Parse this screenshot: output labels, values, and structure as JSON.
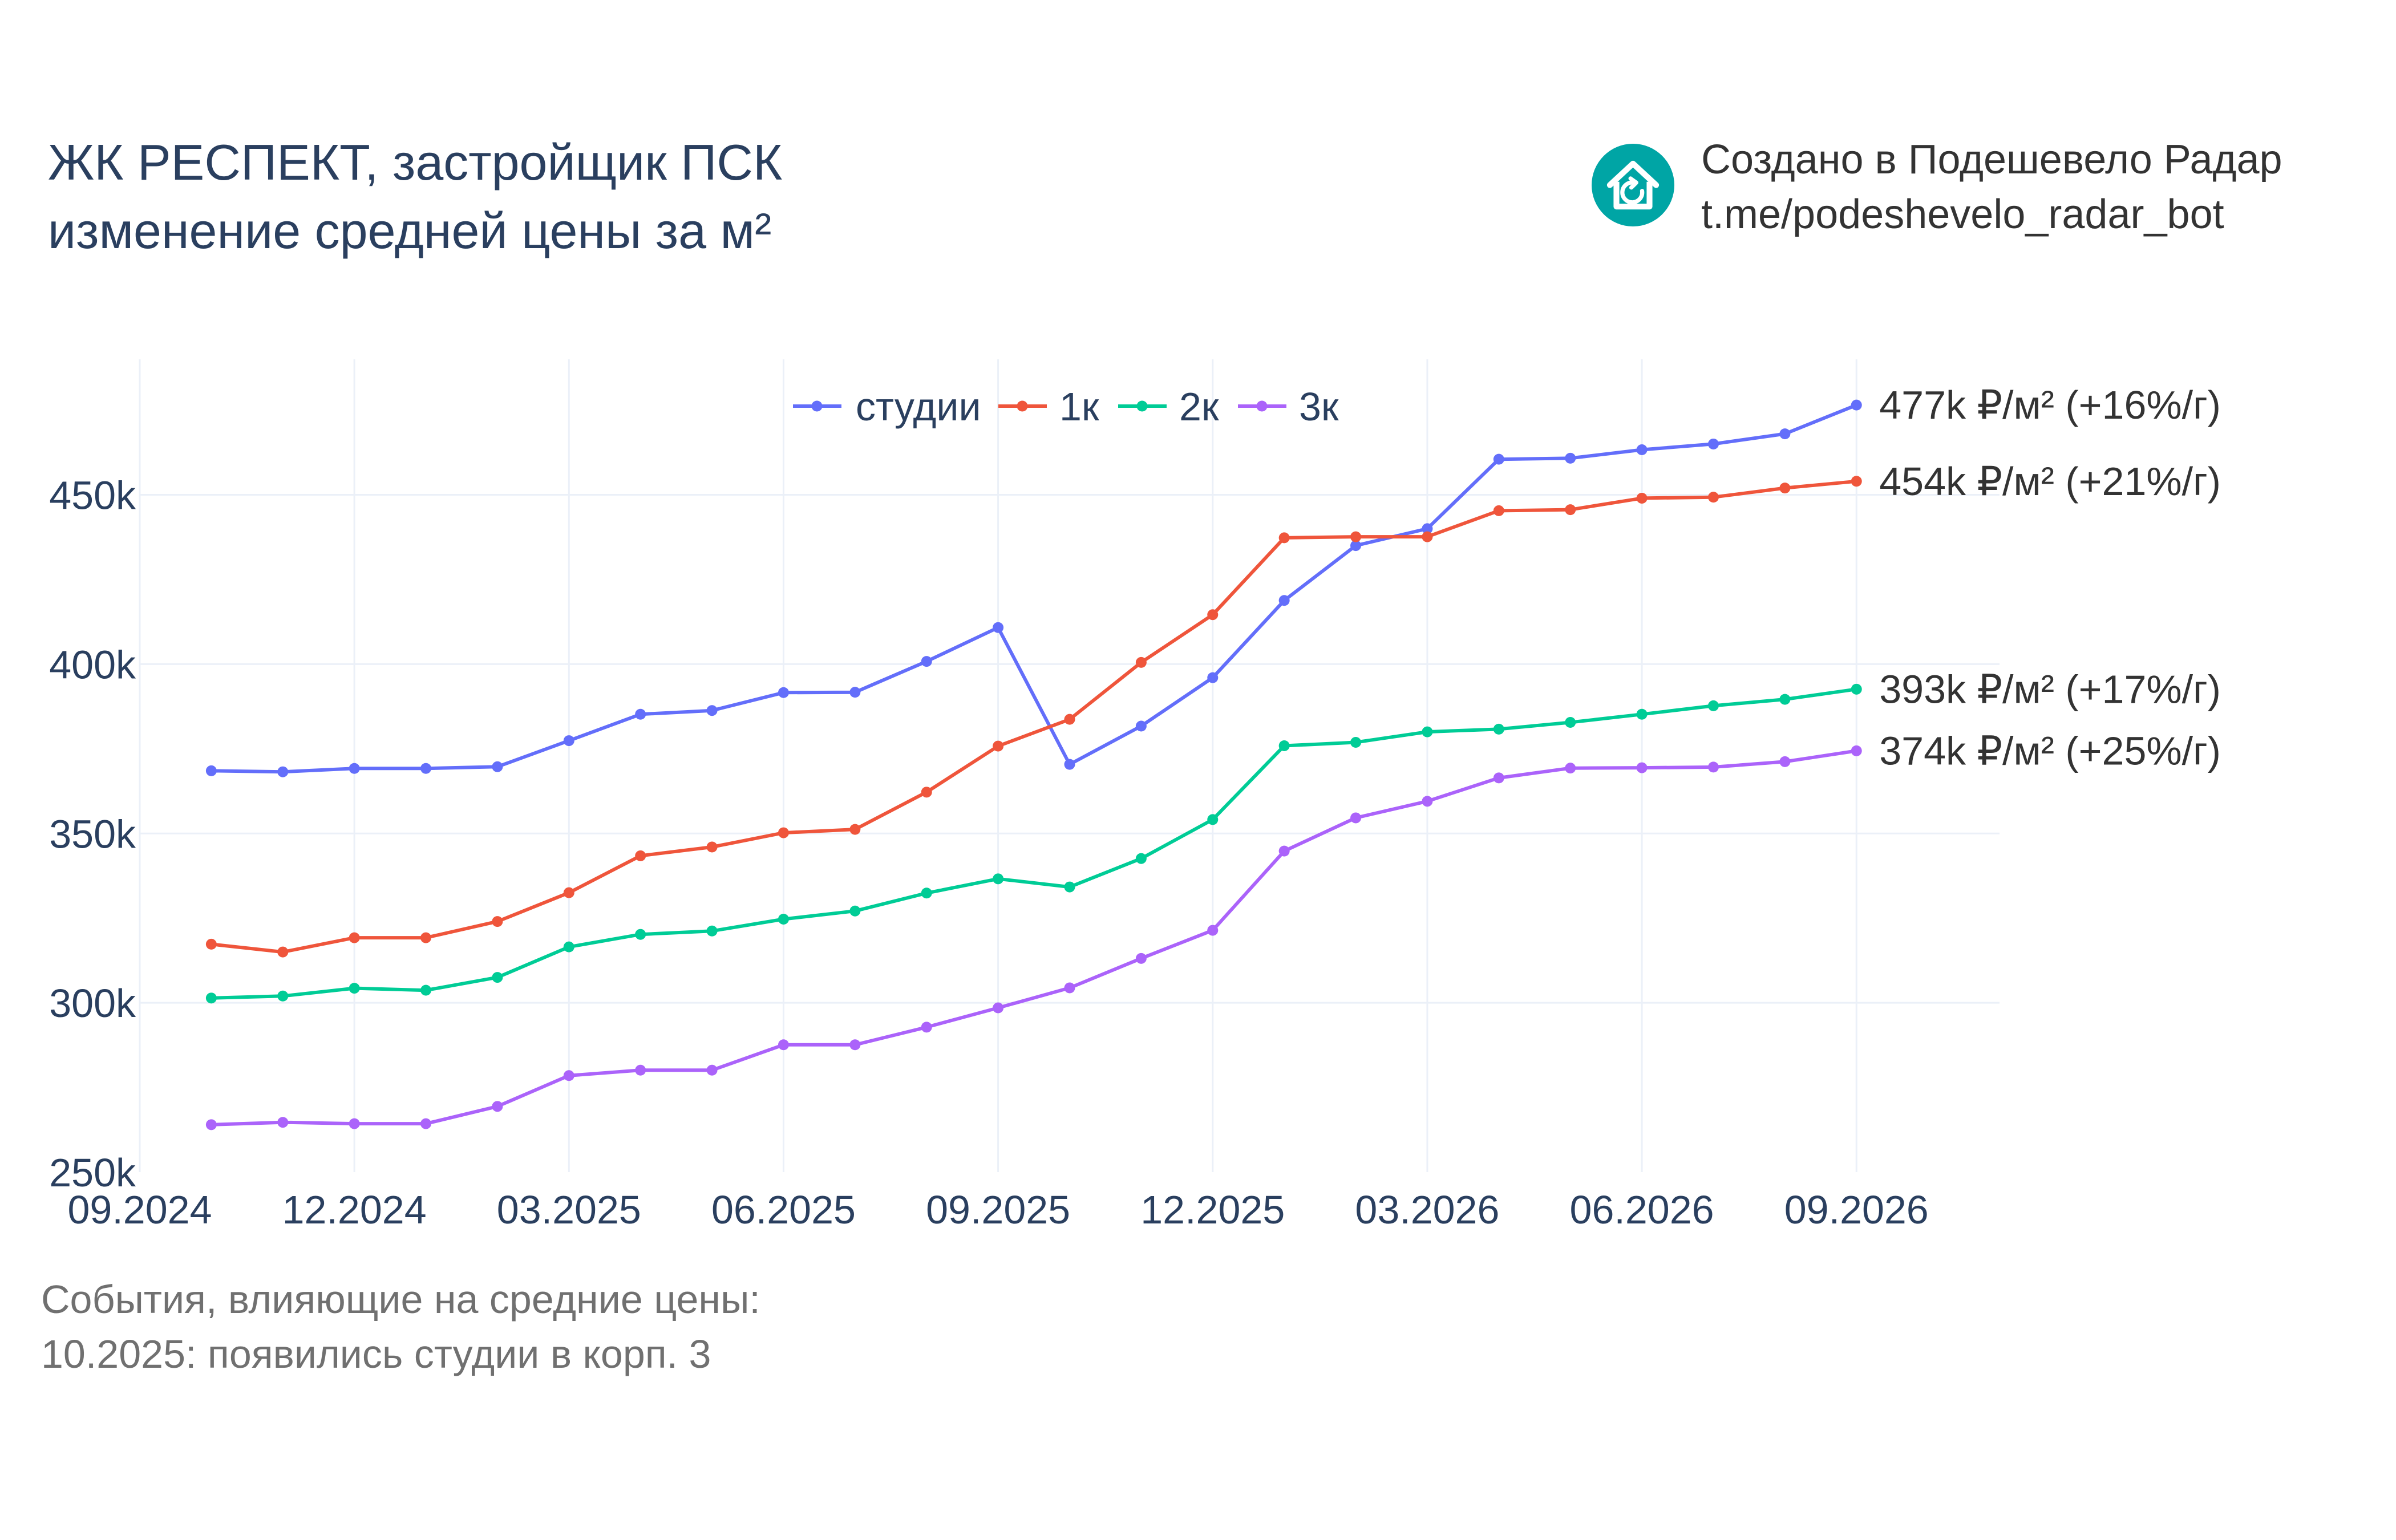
{
  "title": {
    "line1": "ЖК РЕСПЕКТ, застройщик ПСК",
    "line2": "изменение средней цены за м²"
  },
  "brand": {
    "icon": "house-refresh-icon",
    "icon_color": "#00a5a5",
    "line1": "Создано в Подешевело Радар",
    "line2": "t.me/podeshevelo_radar_bot"
  },
  "footer": {
    "line1": "События, влияющие на средние цены:",
    "line2": "10.2025: появились студии в корп. 3"
  },
  "chart_data": {
    "type": "line",
    "x": [
      "2024-10",
      "2024-11",
      "2024-12",
      "2025-01",
      "2025-02",
      "2025-03",
      "2025-04",
      "2025-05",
      "2025-06",
      "2025-07",
      "2025-08",
      "2025-09",
      "2025-10",
      "2025-11",
      "2025-12",
      "2026-01",
      "2026-02",
      "2026-03",
      "2026-04",
      "2026-05",
      "2026-06",
      "2026-07",
      "2026-08",
      "2026-09"
    ],
    "x_ticks": [
      "09.2024",
      "12.2024",
      "03.2025",
      "06.2025",
      "09.2025",
      "12.2025",
      "03.2026",
      "06.2026",
      "09.2026"
    ],
    "x_tick_dates": [
      "2024-09",
      "2024-12",
      "2025-03",
      "2025-06",
      "2025-09",
      "2025-12",
      "2026-03",
      "2026-06",
      "2026-09"
    ],
    "xlim": [
      "2024-09",
      "2026-11"
    ],
    "ylim": [
      250000,
      490000
    ],
    "y_ticks": [
      250000,
      300000,
      350000,
      400000,
      450000
    ],
    "y_tick_labels": [
      "250k",
      "300k",
      "350k",
      "400k",
      "450k"
    ],
    "grid": true,
    "legend_position": "top-center",
    "series": [
      {
        "name": "студии",
        "color": "#636efa",
        "values": [
          368500,
          368200,
          369200,
          369200,
          369700,
          377400,
          385200,
          386300,
          391600,
          391700,
          400800,
          410800,
          370400,
          381700,
          396000,
          418800,
          435000,
          440000,
          460500,
          460800,
          463300,
          465000,
          468000,
          476500
        ],
        "end_label": "477k ₽/м² (+16%/г)"
      },
      {
        "name": "1к",
        "color": "#ef553b",
        "values": [
          317300,
          315000,
          319200,
          319200,
          324000,
          332500,
          343400,
          346000,
          350200,
          351200,
          362200,
          375800,
          383700,
          400500,
          414600,
          437300,
          437600,
          437600,
          445300,
          445600,
          449000,
          449300,
          452000,
          454000
        ],
        "end_label": "454k ₽/м² (+21%/г)"
      },
      {
        "name": "2к",
        "color": "#00cc96",
        "values": [
          301400,
          302000,
          304300,
          303700,
          307500,
          316500,
          320200,
          321200,
          324700,
          327100,
          332400,
          336600,
          334200,
          342600,
          354100,
          375900,
          376900,
          380000,
          380800,
          382800,
          385200,
          387700,
          389600,
          392600
        ],
        "end_label": "393k ₽/м² (+17%/г)"
      },
      {
        "name": "3к",
        "color": "#ab63fa",
        "values": [
          264000,
          264700,
          264300,
          264300,
          269400,
          278500,
          280100,
          280100,
          287600,
          287600,
          292800,
          298500,
          304400,
          313100,
          321400,
          344800,
          354600,
          359500,
          366400,
          369300,
          369400,
          369600,
          371200,
          374400
        ],
        "end_label": "374k ₽/м² (+25%/г)"
      }
    ]
  }
}
